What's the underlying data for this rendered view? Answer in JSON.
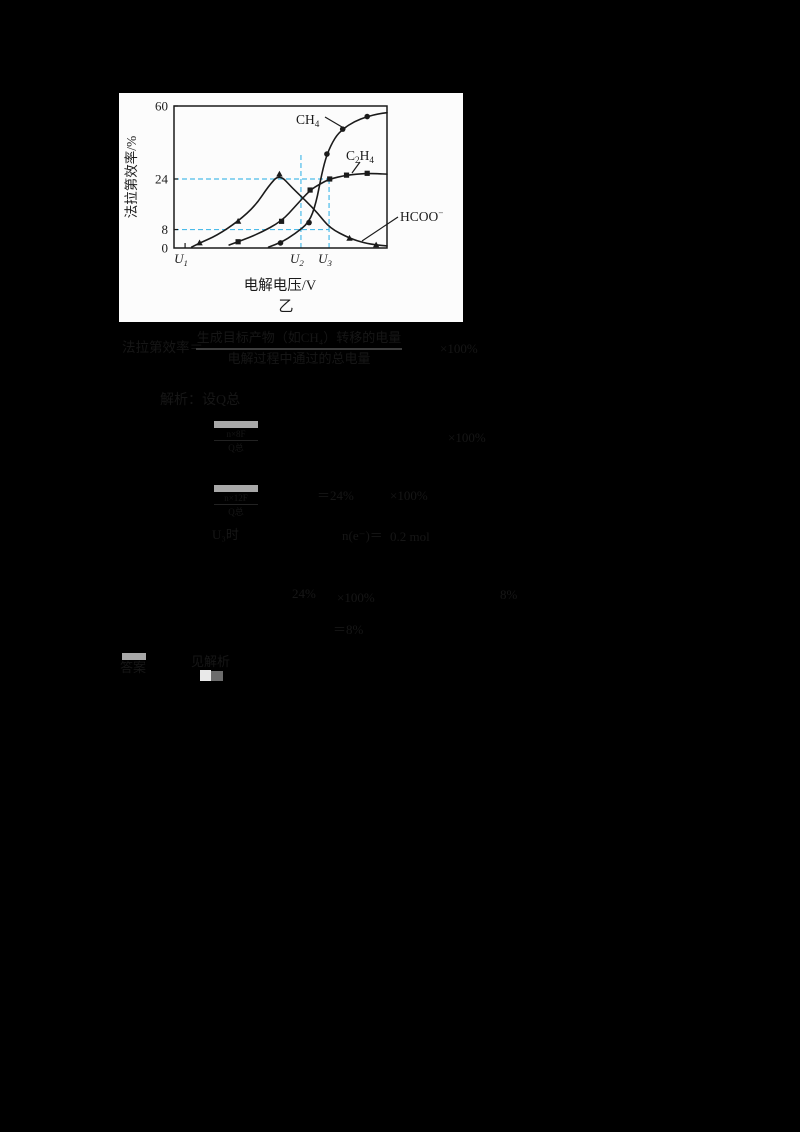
{
  "colors": {
    "page_bg": "#000000",
    "panel_bg": "#fcfcfc",
    "curve": "#1b1b1b",
    "dash": "#4bbbe9",
    "dim_text": "#161616",
    "fraction_bar": "#3d3d3d",
    "highlight_gray": "#a8a8a8",
    "answer_white": "#e9e9e9",
    "answer_gray": "#6c6c6c"
  },
  "chart_data": {
    "type": "line",
    "title": "乙",
    "xlabel": "电解电压/V",
    "ylabel": "法拉第效率/%",
    "ylim": [
      0,
      60
    ],
    "y_ticks": [
      0,
      8,
      24,
      60
    ],
    "y_tick_labels": [
      "0",
      "8",
      "24",
      "60"
    ],
    "y_scale_anchors": [
      [
        0,
        0
      ],
      [
        8,
        0.13
      ],
      [
        24,
        0.486
      ],
      [
        60,
        1
      ]
    ],
    "x_ticks": [
      {
        "fx": 0.052,
        "parts": [
          [
            "U",
            "n"
          ],
          [
            "1",
            "sub"
          ]
        ]
      },
      {
        "fx": 0.596,
        "parts": [
          [
            "U",
            "n"
          ],
          [
            "2",
            "sub"
          ]
        ]
      },
      {
        "fx": 0.728,
        "parts": [
          [
            "U",
            "n"
          ],
          [
            "3",
            "sub"
          ]
        ]
      }
    ],
    "series": [
      {
        "name": "CH4",
        "label_parts": [
          [
            "CH",
            "n"
          ],
          [
            "4",
            "sub"
          ]
        ],
        "marker": "circle",
        "points": [
          [
            0.444,
            0.4
          ],
          [
            0.5,
            2.2
          ],
          [
            0.569,
            6.2
          ],
          [
            0.634,
            10.2
          ],
          [
            0.667,
            16.3
          ],
          [
            0.694,
            26.8
          ],
          [
            0.718,
            36.3
          ],
          [
            0.755,
            44.4
          ],
          [
            0.792,
            48.6
          ],
          [
            0.847,
            52.4
          ],
          [
            0.907,
            54.8
          ],
          [
            0.963,
            56.2
          ],
          [
            1,
            56.7
          ]
        ],
        "markers": [
          [
            0.5,
            2.2
          ],
          [
            0.634,
            10.2
          ],
          [
            0.718,
            36.3
          ],
          [
            0.792,
            48.6
          ],
          [
            0.907,
            54.8
          ]
        ]
      },
      {
        "name": "C2H4",
        "label_parts": [
          [
            "C",
            "n"
          ],
          [
            "2",
            "sub"
          ],
          [
            "H",
            "n"
          ],
          [
            "4",
            "sub"
          ]
        ],
        "marker": "square",
        "points": [
          [
            0.259,
            1.3
          ],
          [
            0.301,
            2.7
          ],
          [
            0.398,
            6.2
          ],
          [
            0.505,
            10.6
          ],
          [
            0.574,
            15.7
          ],
          [
            0.639,
            20.5
          ],
          [
            0.685,
            22.4
          ],
          [
            0.731,
            24
          ],
          [
            0.81,
            25.9
          ],
          [
            0.907,
            26.8
          ],
          [
            1,
            26.4
          ]
        ],
        "markers": [
          [
            0.301,
            2.7
          ],
          [
            0.505,
            10.6
          ],
          [
            0.639,
            20.5
          ],
          [
            0.731,
            24
          ],
          [
            0.81,
            25.9
          ],
          [
            0.907,
            26.8
          ]
        ]
      },
      {
        "name": "HCOO-",
        "label_parts": [
          [
            "HCOO",
            "n"
          ],
          [
            "−",
            "sup"
          ]
        ],
        "marker": "triangle",
        "points": [
          [
            0.083,
            0.4
          ],
          [
            0.12,
            2.2
          ],
          [
            0.199,
            5.3
          ],
          [
            0.301,
            10.6
          ],
          [
            0.384,
            15.7
          ],
          [
            0.444,
            21.8
          ],
          [
            0.495,
            26.4
          ],
          [
            0.556,
            21.1
          ],
          [
            0.616,
            17.3
          ],
          [
            0.676,
            13.1
          ],
          [
            0.731,
            8.5
          ],
          [
            0.824,
            4.2
          ],
          [
            0.894,
            2.2
          ],
          [
            0.949,
            1.3
          ],
          [
            1,
            0.9
          ]
        ],
        "markers": [
          [
            0.12,
            2.2
          ],
          [
            0.301,
            10.6
          ],
          [
            0.495,
            26.4
          ],
          [
            0.824,
            4.2
          ],
          [
            0.949,
            1.3
          ]
        ]
      }
    ],
    "guides": {
      "h_lines": [
        {
          "v": 24,
          "fx_end": 0.728
        },
        {
          "v": 8,
          "fx_end": 0.728
        }
      ],
      "v_lines": [
        {
          "fx": 0.596,
          "v_end": 36.5
        },
        {
          "fx": 0.728,
          "v_end": 24
        }
      ]
    },
    "legend_position": "inline-labels"
  },
  "solution": {
    "formula": {
      "label": "法拉第效率＝",
      "numerator": "生成目标产物（如CH₄）转移的电量",
      "denominator": "电解过程中通过的总电量",
      "suffix": "×100%"
    },
    "blocks": {
      "analysis": "解析：设Q总",
      "chip_a_top": "n×8F",
      "chip_a_bot": "Q总",
      "a_right": "×100%",
      "chip_b_top": "n×12F",
      "chip_b_bot": "Q总",
      "b_mid": "＝24%",
      "b_right": "×100%",
      "e1": "U₃时",
      "e2": "n(e⁻)＝",
      "e3": "0.2 mol",
      "f1": "24%",
      "f2": "×100%",
      "f3": "8%",
      "g1": "＝8%",
      "answer_label": "答案",
      "answer_text": "见解析"
    }
  }
}
